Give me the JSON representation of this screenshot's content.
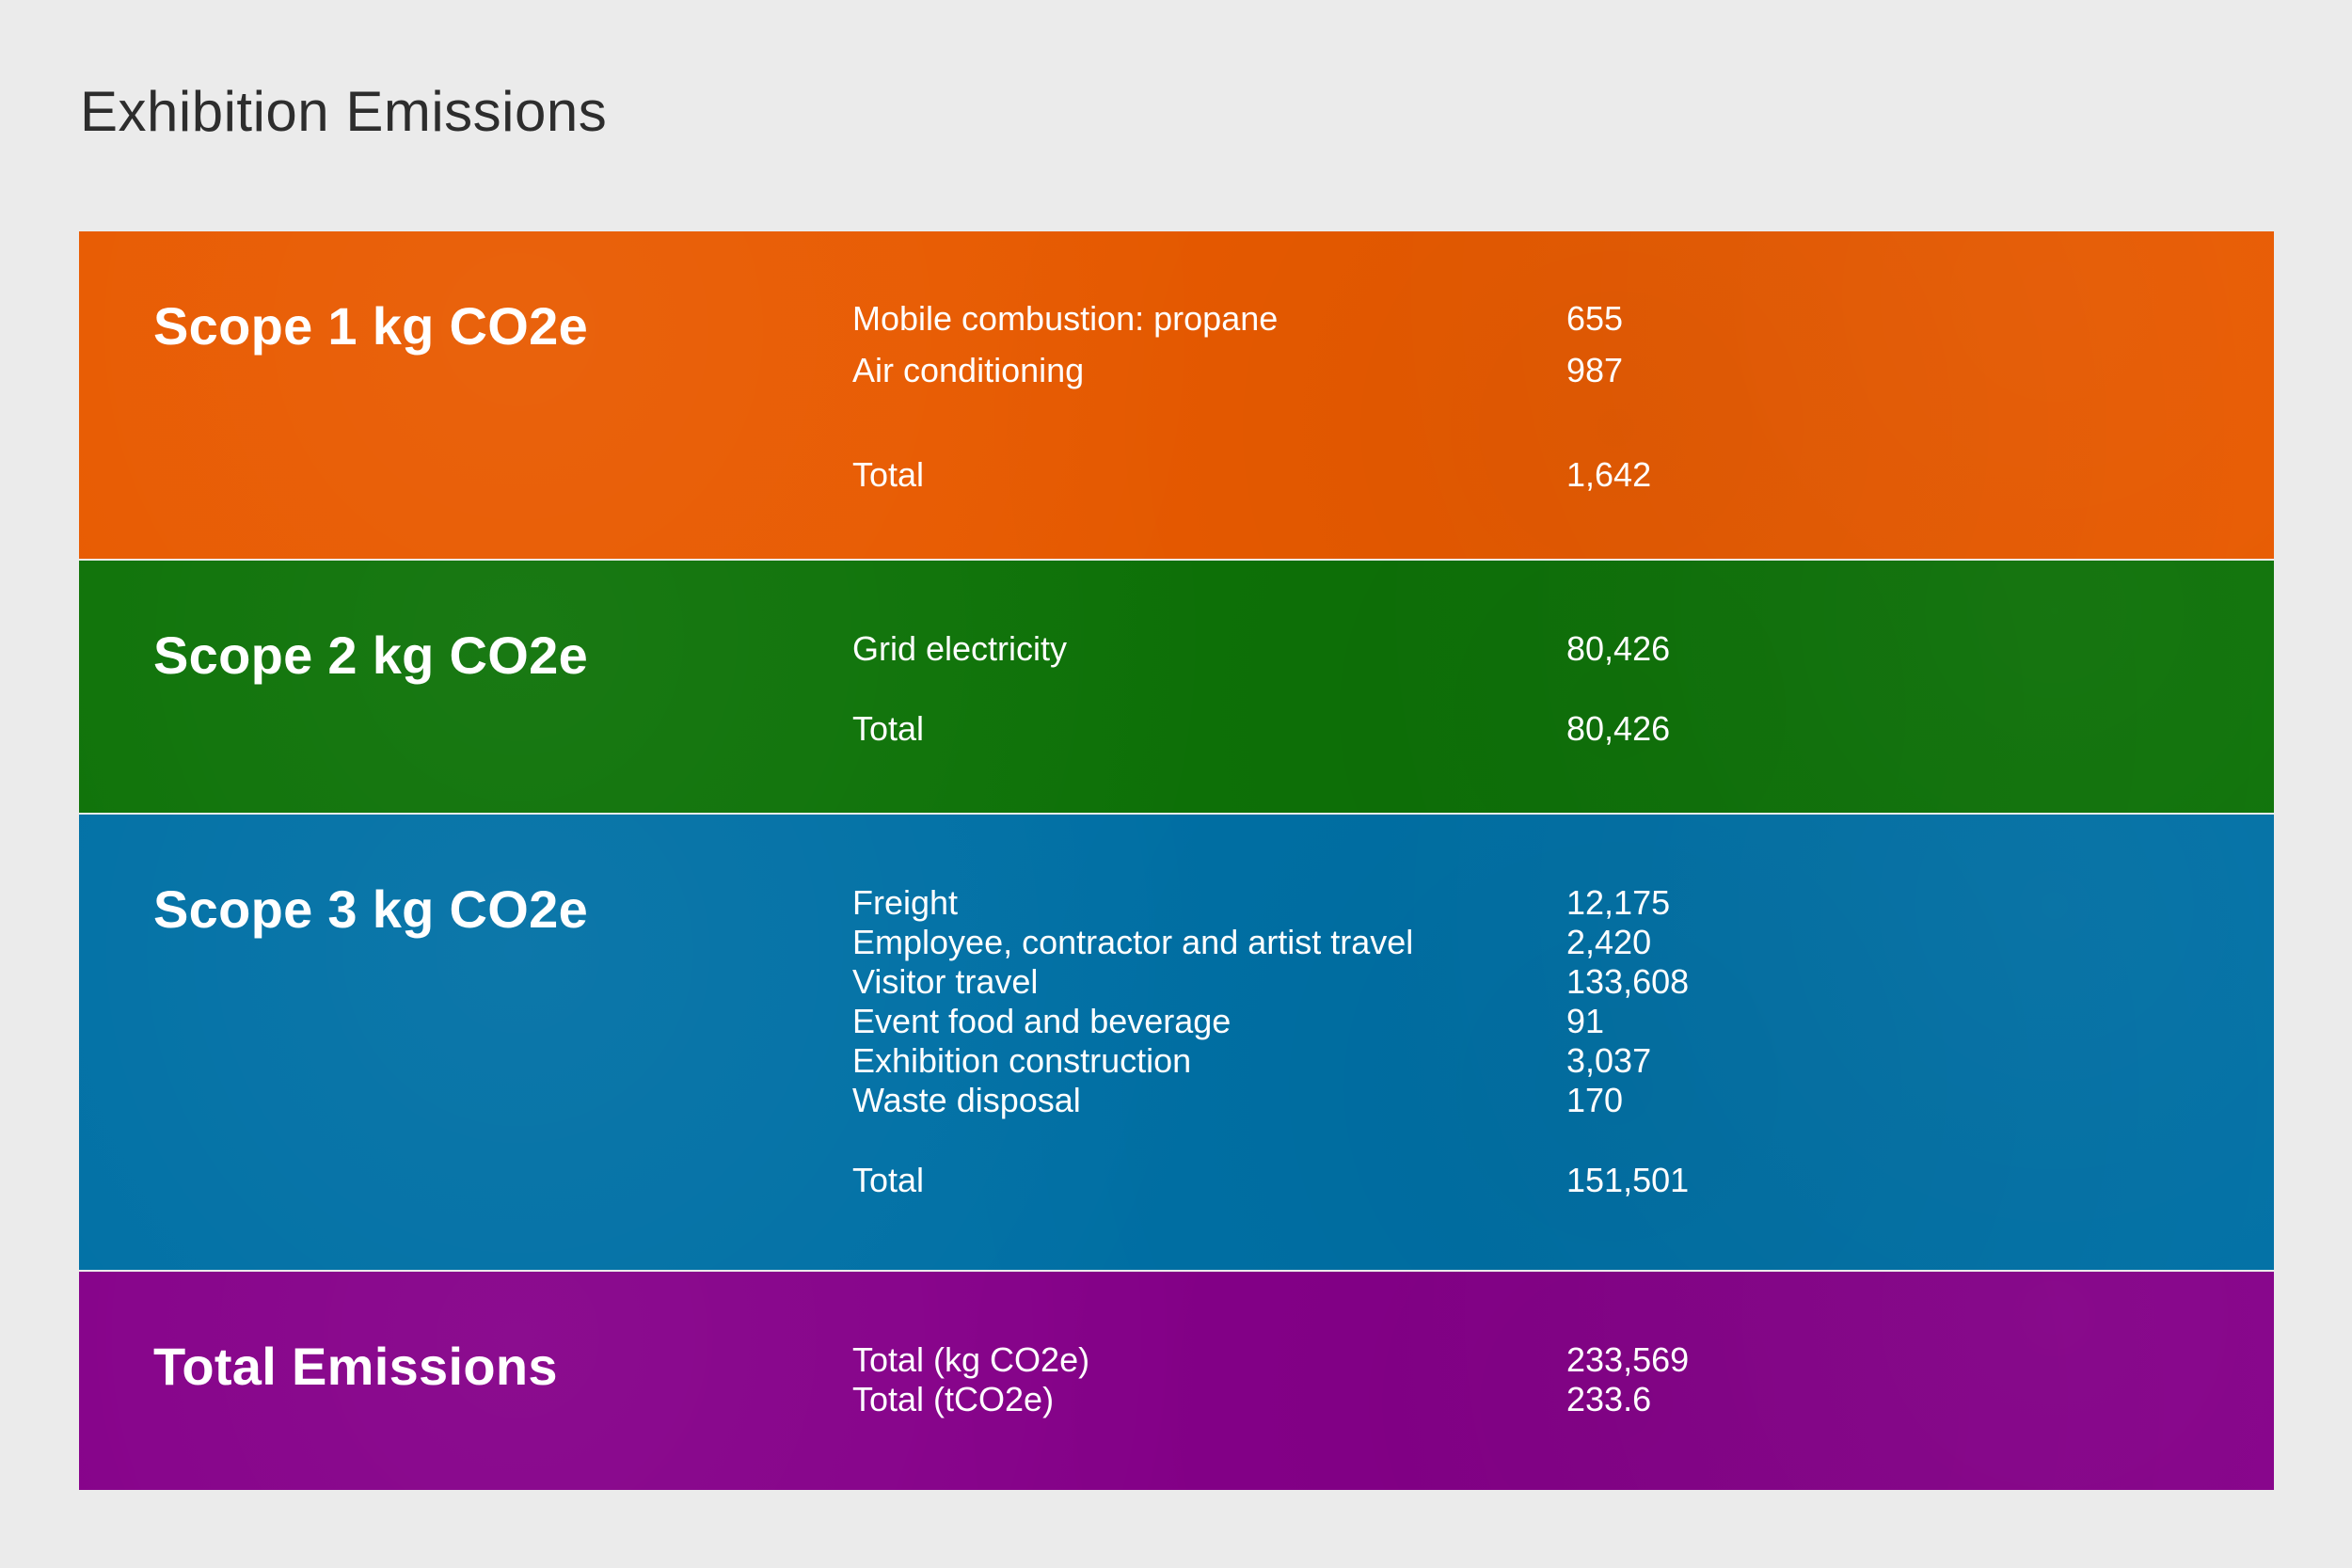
{
  "title": "Exhibition Emissions",
  "chart_data": {
    "type": "table",
    "title": "Exhibition Emissions",
    "sections": [
      {
        "heading": "Scope 1 kg CO2e",
        "color": "#e85a00",
        "rows": [
          {
            "label": "Mobile combustion: propane",
            "value": "655"
          },
          {
            "label": "Air conditioning",
            "value": "987"
          },
          {
            "label": "Total",
            "value": "1,642"
          }
        ]
      },
      {
        "heading": "Scope 2 kg CO2e",
        "color": "#0d7207",
        "rows": [
          {
            "label": "Grid electricity",
            "value": "80,426"
          },
          {
            "label": "Total",
            "value": "80,426"
          }
        ]
      },
      {
        "heading": "Scope 3 kg CO2e",
        "color": "#0070a5",
        "rows": [
          {
            "label": "Freight",
            "value": "12,175"
          },
          {
            "label": "Employee, contractor and artist travel",
            "value": "2,420"
          },
          {
            "label": "Visitor travel",
            "value": "133,608"
          },
          {
            "label": "Event food and beverage",
            "value": "91"
          },
          {
            "label": "Exhibition construction",
            "value": "3,037"
          },
          {
            "label": "Waste disposal",
            "value": "170"
          },
          {
            "label": "Total",
            "value": "151,501"
          }
        ]
      },
      {
        "heading": "Total Emissions",
        "color": "#850089",
        "rows": [
          {
            "label": "Total (kg CO2e)",
            "value": "233,569"
          },
          {
            "label": "Total (tCO2e)",
            "value": "233.6"
          }
        ]
      }
    ]
  }
}
